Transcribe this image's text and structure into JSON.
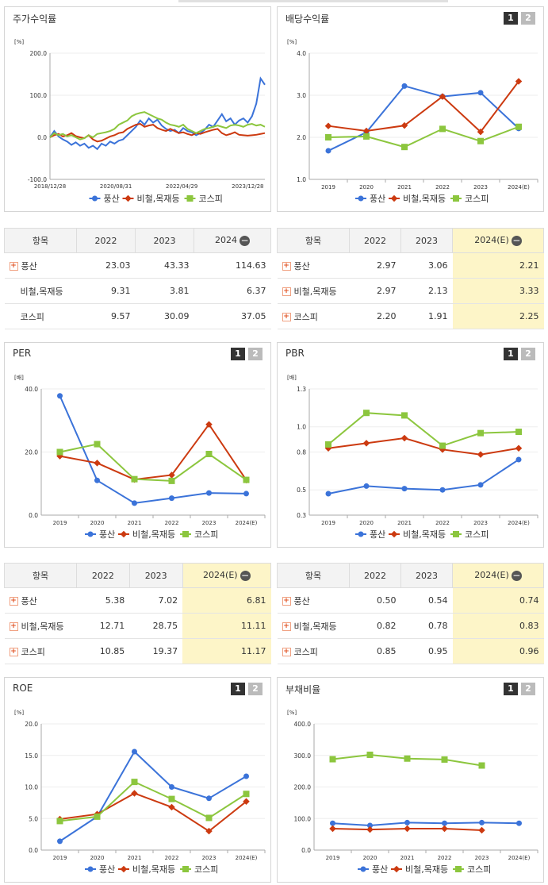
{
  "colors": {
    "series1": "#3b73d9",
    "series2": "#cc3a10",
    "series3": "#8cc63e"
  },
  "legend": [
    "풍산",
    "비철,목재등",
    "코스피"
  ],
  "panels": {
    "stock": {
      "title": "주가수익률",
      "unit": "[%]"
    },
    "div": {
      "title": "배당수익률",
      "unit": "[%]",
      "btn1": "1",
      "btn2": "2"
    },
    "per": {
      "title": "PER",
      "unit": "[배]",
      "btn1": "1",
      "btn2": "2"
    },
    "pbr": {
      "title": "PBR",
      "unit": "[배]",
      "btn1": "1",
      "btn2": "2"
    },
    "roe": {
      "title": "ROE",
      "unit": "[%]",
      "btn1": "1",
      "btn2": "2"
    },
    "debt": {
      "title": "부채비율",
      "unit": "[%]",
      "btn1": "1",
      "btn2": "2"
    }
  },
  "tables": {
    "stock": {
      "header": [
        "항목",
        "2022",
        "2023",
        "2024"
      ],
      "rows": [
        {
          "name": "풍산",
          "plus": true,
          "values": [
            "23.03",
            "43.33",
            "114.63"
          ]
        },
        {
          "name": "비철,목재등",
          "plus": false,
          "values": [
            "9.31",
            "3.81",
            "6.37"
          ]
        },
        {
          "name": "코스피",
          "plus": false,
          "values": [
            "9.57",
            "30.09",
            "37.05"
          ]
        }
      ]
    },
    "div": {
      "header": [
        "항목",
        "2022",
        "2023",
        "2024(E)"
      ],
      "rows": [
        {
          "name": "풍산",
          "plus": true,
          "values": [
            "2.97",
            "3.06",
            "2.21"
          ]
        },
        {
          "name": "비철,목재등",
          "plus": true,
          "values": [
            "2.97",
            "2.13",
            "3.33"
          ]
        },
        {
          "name": "코스피",
          "plus": true,
          "values": [
            "2.20",
            "1.91",
            "2.25"
          ]
        }
      ]
    },
    "per": {
      "header": [
        "항목",
        "2022",
        "2023",
        "2024(E)"
      ],
      "rows": [
        {
          "name": "풍산",
          "plus": true,
          "values": [
            "5.38",
            "7.02",
            "6.81"
          ]
        },
        {
          "name": "비철,목재등",
          "plus": true,
          "values": [
            "12.71",
            "28.75",
            "11.11"
          ]
        },
        {
          "name": "코스피",
          "plus": true,
          "values": [
            "10.85",
            "19.37",
            "11.17"
          ]
        }
      ]
    },
    "pbr": {
      "header": [
        "항목",
        "2022",
        "2023",
        "2024(E)"
      ],
      "rows": [
        {
          "name": "풍산",
          "plus": true,
          "values": [
            "0.50",
            "0.54",
            "0.74"
          ]
        },
        {
          "name": "비철,목재등",
          "plus": true,
          "values": [
            "0.82",
            "0.78",
            "0.83"
          ]
        },
        {
          "name": "코스피",
          "plus": true,
          "values": [
            "0.85",
            "0.95",
            "0.96"
          ]
        }
      ]
    }
  },
  "chart_data": [
    {
      "id": "stock",
      "type": "line",
      "ylim": [
        -100,
        200
      ],
      "yticks": [
        "200.0",
        "100.0",
        "0.0",
        "-100.0"
      ],
      "xticks": [
        "2018/12/28",
        "2020/08/31",
        "2022/04/29",
        "2023/12/28"
      ],
      "x": [
        0,
        0.02,
        0.04,
        0.06,
        0.08,
        0.1,
        0.12,
        0.14,
        0.16,
        0.18,
        0.2,
        0.22,
        0.24,
        0.26,
        0.28,
        0.3,
        0.32,
        0.34,
        0.36,
        0.38,
        0.4,
        0.42,
        0.44,
        0.46,
        0.48,
        0.5,
        0.52,
        0.54,
        0.56,
        0.58,
        0.6,
        0.62,
        0.64,
        0.66,
        0.68,
        0.7,
        0.72,
        0.74,
        0.76,
        0.78,
        0.8,
        0.82,
        0.84,
        0.86,
        0.88,
        0.9,
        0.92,
        0.94,
        0.96,
        0.98,
        1.0
      ],
      "series": [
        {
          "name": "풍산",
          "values": [
            0,
            15,
            2,
            -5,
            -10,
            -18,
            -12,
            -20,
            -15,
            -25,
            -20,
            -28,
            -15,
            -20,
            -10,
            -15,
            -8,
            -5,
            5,
            15,
            25,
            40,
            30,
            45,
            35,
            42,
            28,
            20,
            15,
            18,
            10,
            22,
            15,
            12,
            5,
            10,
            18,
            30,
            25,
            40,
            55,
            38,
            45,
            30,
            40,
            45,
            35,
            50,
            80,
            140,
            125
          ]
        },
        {
          "name": "비철,목재등",
          "values": [
            0,
            5,
            8,
            2,
            5,
            10,
            3,
            0,
            -2,
            5,
            -5,
            -10,
            -8,
            -3,
            2,
            5,
            10,
            12,
            20,
            25,
            30,
            32,
            25,
            28,
            30,
            22,
            18,
            15,
            20,
            15,
            10,
            12,
            8,
            5,
            10,
            8,
            12,
            15,
            18,
            20,
            10,
            5,
            8,
            12,
            6,
            5,
            4,
            5,
            6,
            8,
            10
          ]
        },
        {
          "name": "코스피",
          "values": [
            0,
            10,
            5,
            8,
            2,
            5,
            0,
            -5,
            -2,
            5,
            0,
            8,
            10,
            12,
            15,
            20,
            30,
            35,
            40,
            50,
            55,
            58,
            60,
            55,
            50,
            45,
            42,
            35,
            30,
            28,
            25,
            30,
            20,
            15,
            10,
            15,
            20,
            22,
            25,
            28,
            25,
            22,
            28,
            30,
            28,
            25,
            30,
            32,
            28,
            30,
            25
          ]
        }
      ]
    },
    {
      "id": "div",
      "type": "line",
      "ylim": [
        1.0,
        4.0
      ],
      "yticks": [
        "4.0",
        "3.0",
        "2.0",
        "1.0"
      ],
      "categories": [
        "2019",
        "2020",
        "2021",
        "2022",
        "2023",
        "2024(E)"
      ],
      "series": [
        {
          "name": "풍산",
          "values": [
            1.68,
            2.12,
            3.22,
            2.97,
            3.06,
            2.21
          ]
        },
        {
          "name": "비철,목재등",
          "values": [
            2.27,
            2.15,
            2.28,
            2.97,
            2.13,
            3.33
          ]
        },
        {
          "name": "코스피",
          "values": [
            2.0,
            2.02,
            1.77,
            2.2,
            1.91,
            2.25
          ]
        }
      ]
    },
    {
      "id": "per",
      "type": "line",
      "ylim": [
        0,
        40
      ],
      "yticks": [
        "40.0",
        "20.0",
        "0.0"
      ],
      "categories": [
        "2019",
        "2020",
        "2021",
        "2022",
        "2023",
        "2024(E)"
      ],
      "series": [
        {
          "name": "풍산",
          "values": [
            37.8,
            11.0,
            3.8,
            5.38,
            7.02,
            6.81
          ]
        },
        {
          "name": "비철,목재등",
          "values": [
            18.7,
            16.5,
            11.3,
            12.71,
            28.75,
            11.11
          ]
        },
        {
          "name": "코스피",
          "values": [
            20.0,
            22.5,
            11.4,
            10.85,
            19.37,
            11.17
          ]
        }
      ]
    },
    {
      "id": "pbr",
      "type": "line",
      "ylim": [
        0.3,
        1.3
      ],
      "yticks": [
        "1.3",
        "1.0",
        "0.8",
        "0.5",
        "0.3"
      ],
      "categories": [
        "2019",
        "2020",
        "2021",
        "2022",
        "2023",
        "2024(E)"
      ],
      "series": [
        {
          "name": "풍산",
          "values": [
            0.47,
            0.53,
            0.51,
            0.5,
            0.54,
            0.74
          ]
        },
        {
          "name": "비철,목재등",
          "values": [
            0.83,
            0.87,
            0.91,
            0.82,
            0.78,
            0.83
          ]
        },
        {
          "name": "코스피",
          "values": [
            0.86,
            1.11,
            1.09,
            0.85,
            0.95,
            0.96
          ]
        }
      ]
    },
    {
      "id": "roe",
      "type": "line",
      "ylim": [
        0,
        20
      ],
      "yticks": [
        "20.0",
        "15.0",
        "10.0",
        "5.0",
        "0.0"
      ],
      "categories": [
        "2019",
        "2020",
        "2021",
        "2022",
        "2023",
        "2024(E)"
      ],
      "series": [
        {
          "name": "풍산",
          "values": [
            1.4,
            5.3,
            15.6,
            10.0,
            8.2,
            11.7
          ]
        },
        {
          "name": "비철,목재등",
          "values": [
            4.9,
            5.7,
            9.0,
            6.8,
            3.0,
            7.7
          ]
        },
        {
          "name": "코스피",
          "values": [
            4.6,
            5.3,
            10.8,
            8.1,
            5.1,
            8.9
          ]
        }
      ]
    },
    {
      "id": "debt",
      "type": "line",
      "ylim": [
        0,
        400
      ],
      "yticks": [
        "400.0",
        "300.0",
        "200.0",
        "100.0",
        "0.0"
      ],
      "categories": [
        "2019",
        "2020",
        "2021",
        "2022",
        "2023",
        "2024(E)"
      ],
      "series": [
        {
          "name": "풍산",
          "values": [
            85,
            78,
            87,
            85,
            87,
            85
          ]
        },
        {
          "name": "비철,목재등",
          "values": [
            68,
            65,
            68,
            68,
            63,
            null
          ]
        },
        {
          "name": "코스피",
          "values": [
            288,
            302,
            290,
            287,
            268,
            null
          ]
        }
      ]
    }
  ]
}
